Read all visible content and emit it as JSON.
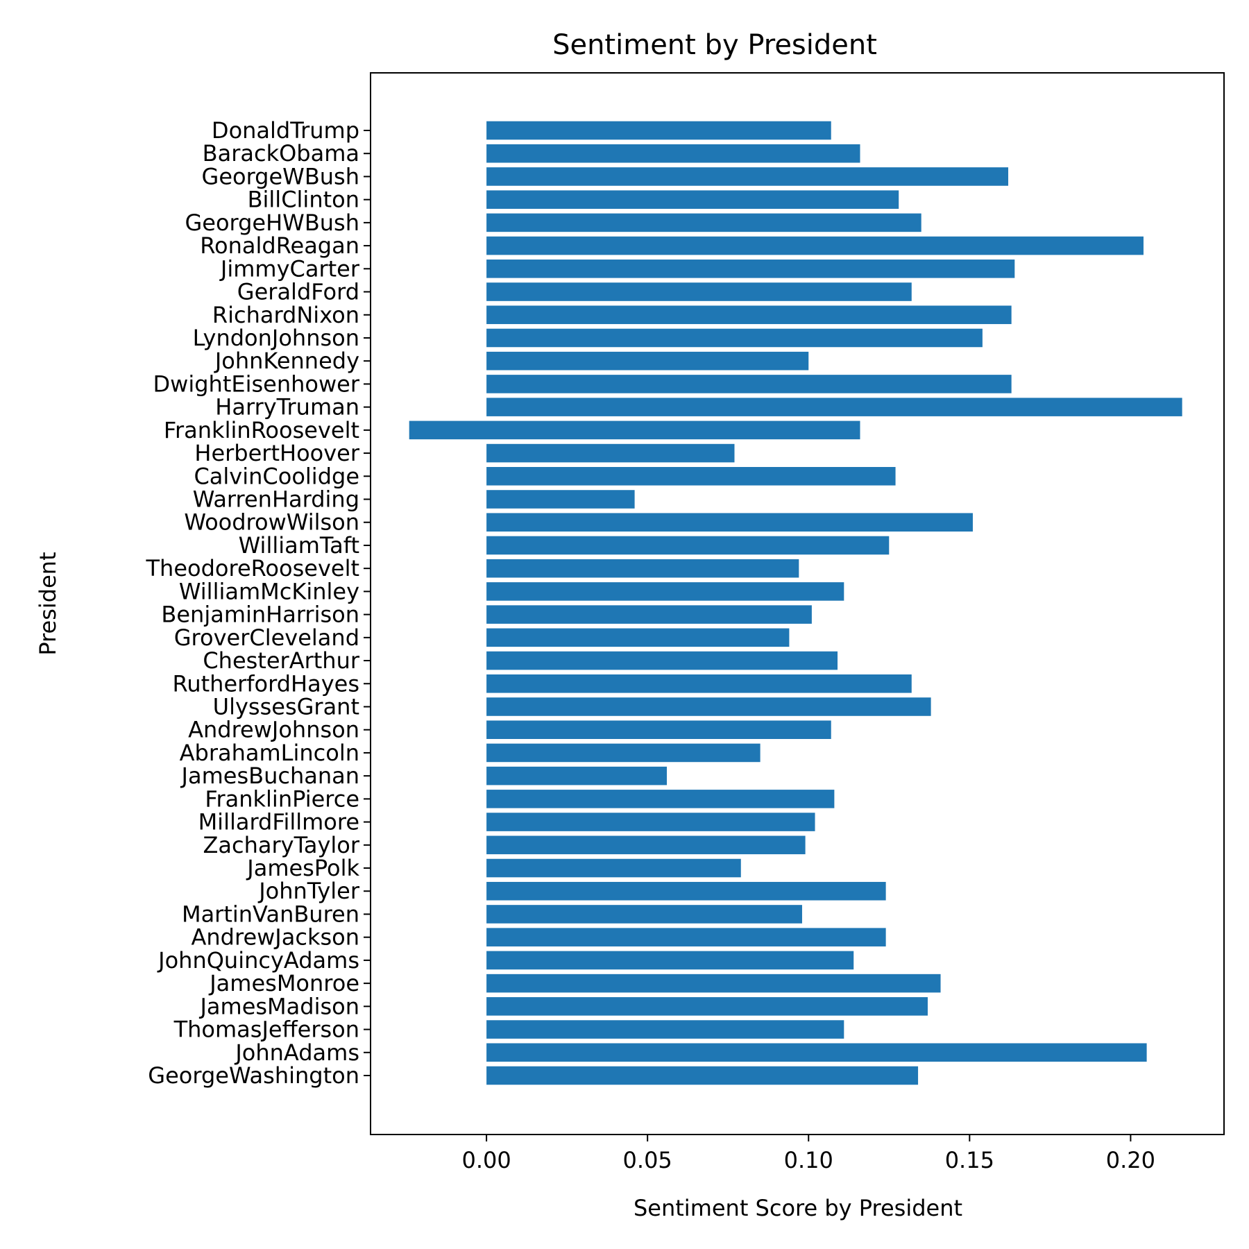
{
  "chart_data": {
    "type": "bar",
    "orientation": "horizontal",
    "title": "Sentiment by President",
    "xlabel": "Sentiment Score by President",
    "ylabel": "President",
    "xlim": [
      -0.036,
      0.229
    ],
    "xticks": [
      0.0,
      0.05,
      0.1,
      0.15,
      0.2
    ],
    "xtick_labels": [
      "0.00",
      "0.05",
      "0.10",
      "0.15",
      "0.20"
    ],
    "grid": false,
    "legend": "none",
    "bar_color": "#1f77b4",
    "categories": [
      "GeorgeWashington",
      "JohnAdams",
      "ThomasJefferson",
      "JamesMadison",
      "JamesMonroe",
      "JohnQuincyAdams",
      "AndrewJackson",
      "MartinVanBuren",
      "JohnTyler",
      "JamesPolk",
      "ZacharyTaylor",
      "MillardFillmore",
      "FranklinPierce",
      "JamesBuchanan",
      "AbrahamLincoln",
      "AndrewJohnson",
      "UlyssesGrant",
      "RutherfordHayes",
      "ChesterArthur",
      "GroverCleveland",
      "BenjaminHarrison",
      "WilliamMcKinley",
      "TheodoreRoosevelt",
      "WilliamTaft",
      "WoodrowWilson",
      "WarrenHarding",
      "CalvinCoolidge",
      "HerbertHoover",
      "FranklinRoosevelt",
      "HarryTruman",
      "DwightEisenhower",
      "JohnKennedy",
      "LyndonJohnson",
      "RichardNixon",
      "GeraldFord",
      "JimmyCarter",
      "RonaldReagan",
      "GeorgeHWBush",
      "BillClinton",
      "GeorgeWBush",
      "BarackObama",
      "DonaldTrump"
    ],
    "values": [
      0.134,
      0.205,
      0.111,
      0.137,
      0.141,
      0.114,
      0.124,
      0.098,
      0.124,
      0.079,
      0.099,
      0.102,
      0.108,
      0.056,
      0.085,
      0.107,
      0.138,
      0.132,
      0.109,
      0.094,
      0.101,
      0.111,
      0.097,
      0.125,
      0.151,
      0.046,
      0.127,
      0.077,
      0.116,
      0.216,
      0.163,
      0.1,
      0.154,
      0.163,
      0.132,
      0.164,
      0.204,
      0.135,
      0.128,
      0.162,
      0.116,
      0.107
    ],
    "negative_extents": {
      "FranklinRoosevelt": -0.024
    }
  }
}
